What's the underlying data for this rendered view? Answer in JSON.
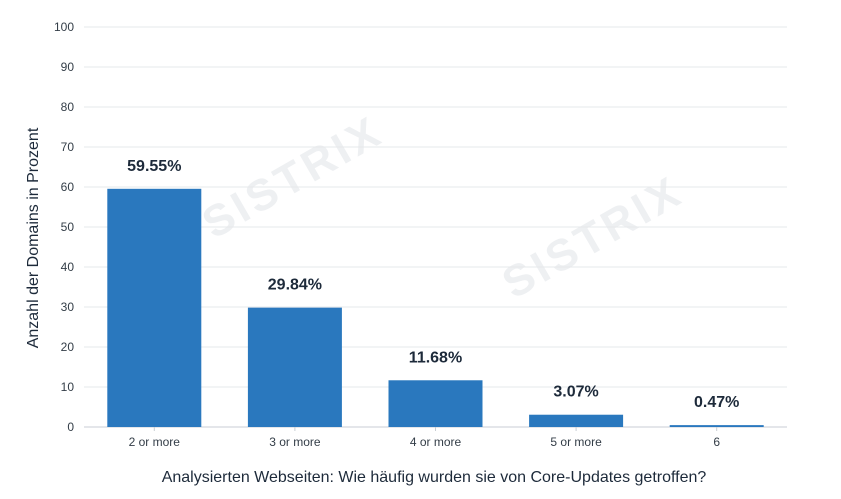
{
  "watermark": "SISTRIX",
  "chart_data": {
    "type": "bar",
    "categories": [
      "2 or more",
      "3 or more",
      "4 or more",
      "5 or more",
      "6"
    ],
    "values": [
      59.55,
      29.84,
      11.68,
      3.07,
      0.47
    ],
    "data_labels": [
      "59.55%",
      "29.84%",
      "11.68%",
      "3.07%",
      "0.47%"
    ],
    "xlabel": "Analysierten Webseiten: Wie häufig wurden sie von Core-Updates getroffen?",
    "ylabel": "Anzahl der Domains in Prozent",
    "ylim": [
      0,
      100
    ],
    "yticks": [
      0,
      10,
      20,
      30,
      40,
      50,
      60,
      70,
      80,
      90,
      100
    ],
    "grid": true,
    "bar_color": "#2a78be",
    "grid_color": "#e6e8eb"
  }
}
